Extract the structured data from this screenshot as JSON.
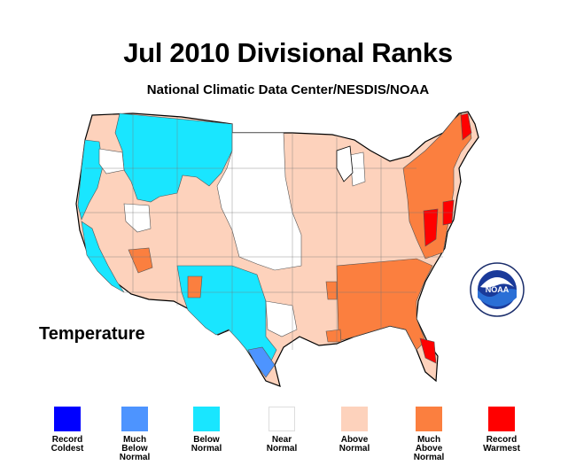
{
  "title": "Jul 2010 Divisional Ranks",
  "subtitle": "National Climatic Data Center/NESDIS/NOAA",
  "variable_label": "Temperature",
  "logo_text": "NOAA",
  "legend": [
    {
      "label": "Record\nColdest",
      "color": "#0000ff"
    },
    {
      "label": "Much\nBelow\nNormal",
      "color": "#4d94ff"
    },
    {
      "label": "Below\nNormal",
      "color": "#19e6ff"
    },
    {
      "label": "Near\nNormal",
      "color": "#ffffff"
    },
    {
      "label": "Above\nNormal",
      "color": "#fdd2bc"
    },
    {
      "label": "Much\nAbove\nNormal",
      "color": "#fb7f3f"
    },
    {
      "label": "Record\nWarmest",
      "color": "#ff0000"
    }
  ],
  "colors": {
    "outline": "#000000",
    "divisions": "#555555"
  }
}
